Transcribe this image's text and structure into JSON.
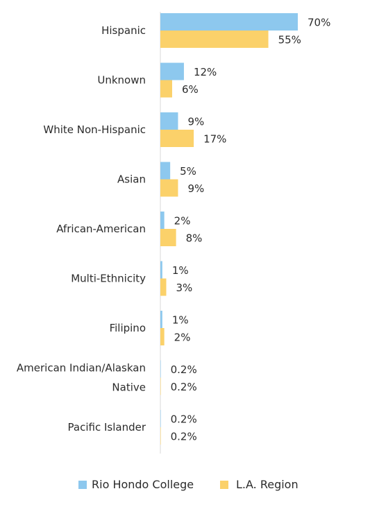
{
  "chart_data": {
    "type": "bar",
    "orientation": "horizontal",
    "categories": [
      [
        "Hispanic"
      ],
      [
        "Unknown"
      ],
      [
        "White Non-Hispanic"
      ],
      [
        "Asian"
      ],
      [
        "African-American"
      ],
      [
        "Multi-Ethnicity"
      ],
      [
        "Filipino"
      ],
      [
        "American Indian/Alaskan",
        "Native"
      ],
      [
        "Pacific Islander"
      ]
    ],
    "series": [
      {
        "name": "Rio Hondo College",
        "color": "#8DC8EE",
        "values": [
          70,
          12,
          9,
          5,
          2,
          1,
          1,
          0.2,
          0.2
        ],
        "labels": [
          "70%",
          "12%",
          "9%",
          "5%",
          "2%",
          "1%",
          "1%",
          "0.2%",
          "0.2%"
        ]
      },
      {
        "name": "L.A. Region",
        "color": "#FBD16A",
        "values": [
          55,
          6,
          17,
          9,
          8,
          3,
          2,
          0.2,
          0.2
        ],
        "labels": [
          "55%",
          "6%",
          "17%",
          "9%",
          "8%",
          "3%",
          "2%",
          "0.2%",
          "0.2%"
        ]
      }
    ],
    "xlim": [
      0,
      70
    ],
    "grid": false,
    "legend_position": "bottom"
  }
}
